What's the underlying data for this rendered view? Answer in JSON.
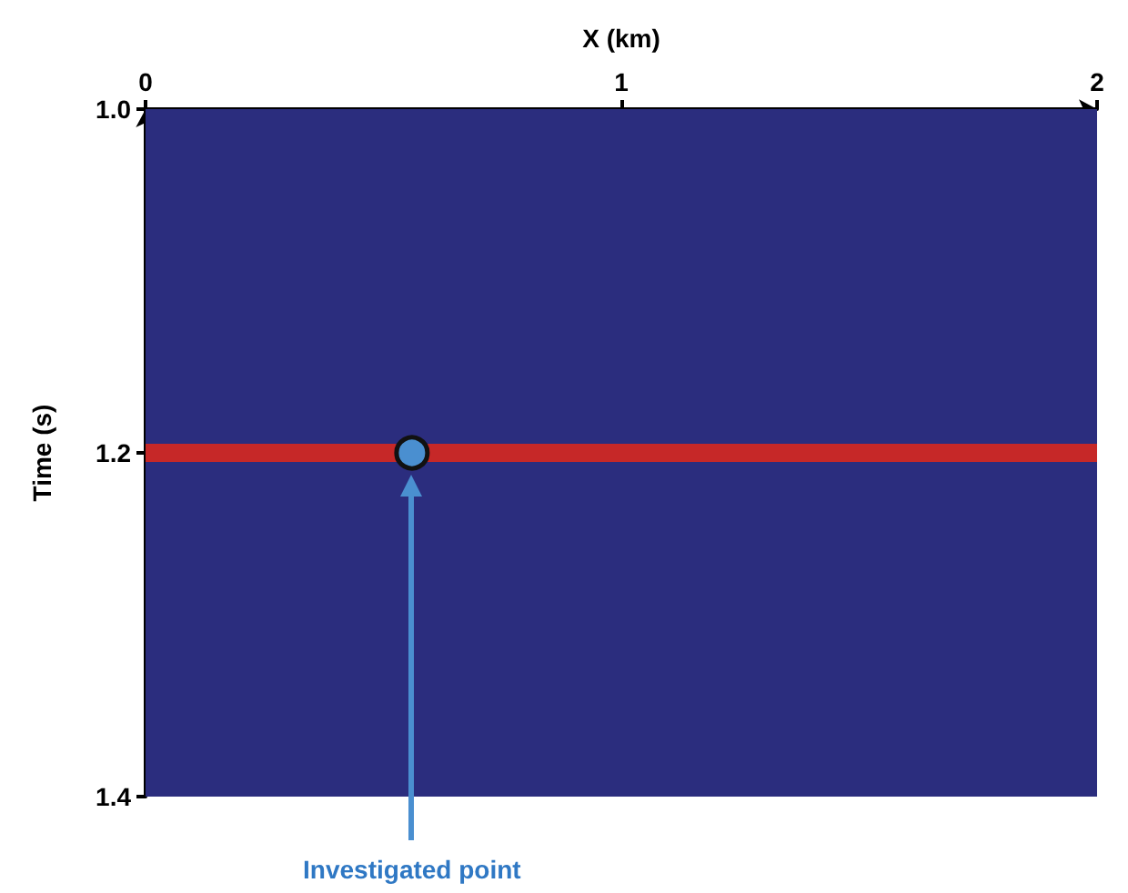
{
  "chart_data": {
    "type": "scatter",
    "xlabel": "X (km)",
    "ylabel": "Time (s)",
    "xlim": [
      0,
      2
    ],
    "xticks": [
      0,
      1,
      2
    ],
    "ylim": [
      1.4,
      1.0
    ],
    "yticks": [
      {
        "value": 1.0,
        "label": "1.0"
      },
      1.2,
      1.4
    ],
    "series": [
      {
        "color": "#4a8fd0",
        "x": [
          0.56
        ],
        "values": [
          1.2
        ]
      }
    ],
    "marker": "circle",
    "grid": false,
    "ref_lines": [
      {
        "axis": "y",
        "value": 1.2,
        "color": "#c62828"
      }
    ],
    "bands": [
      {
        "axis": "y",
        "from": 1.0,
        "to": 1.4,
        "color": "#2b2d7e"
      }
    ],
    "annotations": [
      "Investigated point"
    ]
  }
}
